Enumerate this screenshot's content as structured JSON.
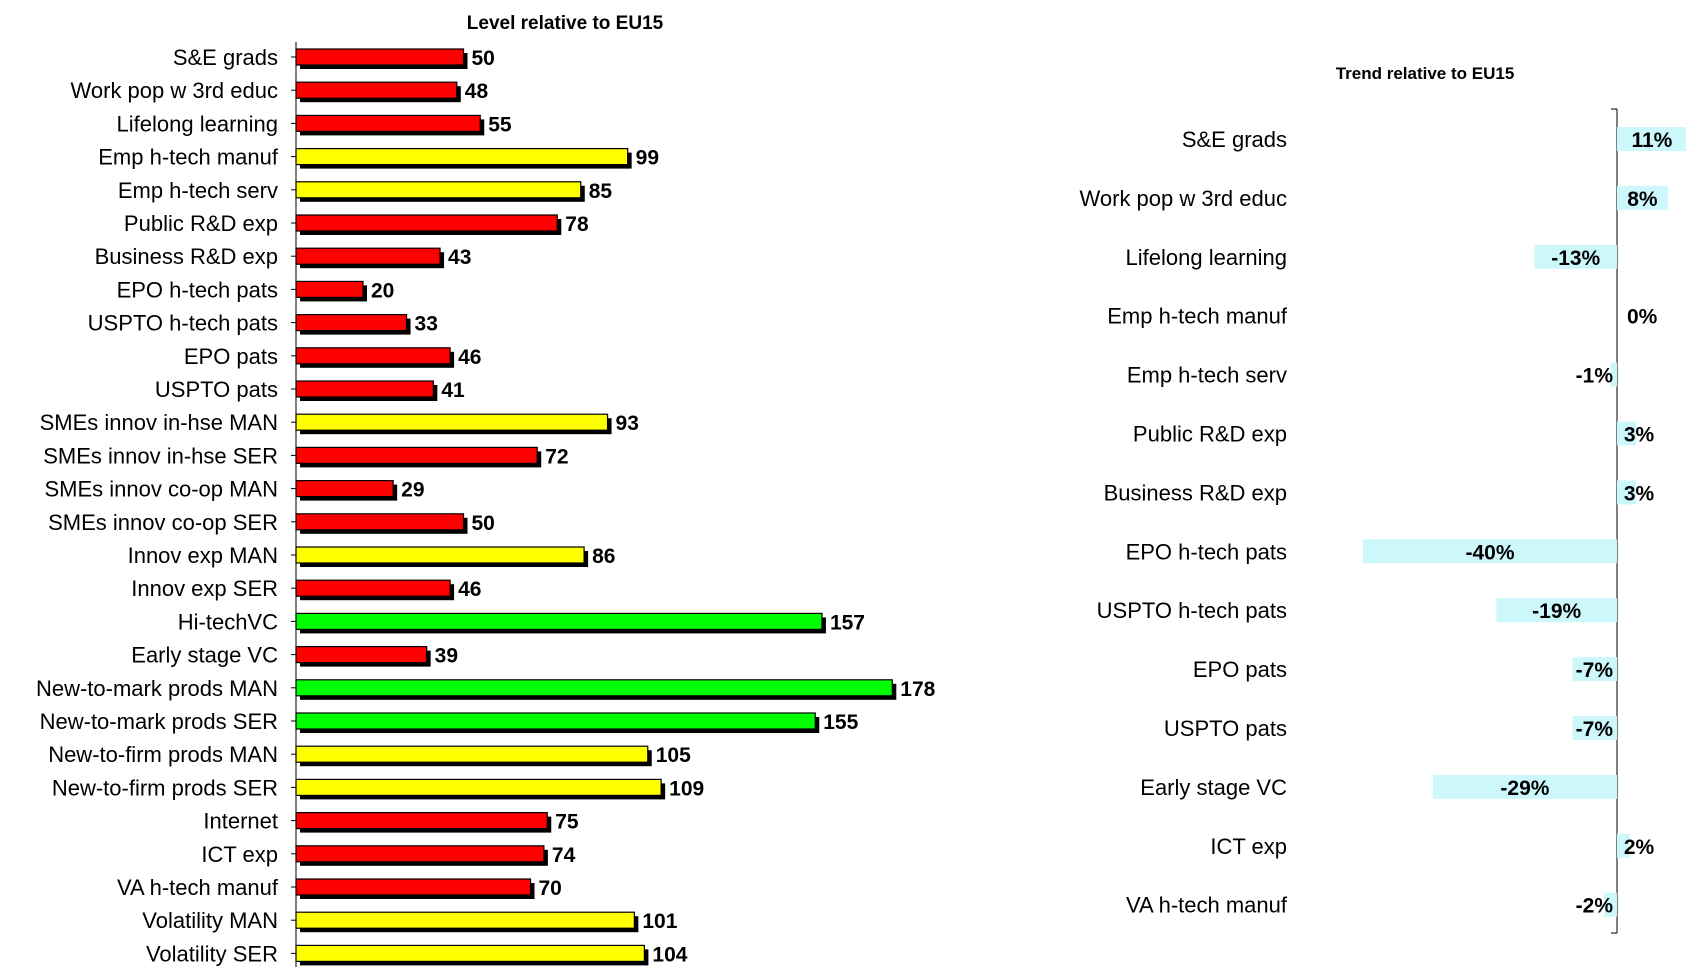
{
  "chart_data": [
    {
      "type": "bar",
      "orientation": "horizontal",
      "title": "Level relative to EU15",
      "categories": [
        "S&E grads",
        "Work pop w 3rd educ",
        "Lifelong learning",
        "Emp h-tech manuf",
        "Emp h-tech serv",
        "Public R&D exp",
        "Business R&D exp",
        "EPO h-tech pats",
        "USPTO h-tech pats",
        "EPO pats",
        "USPTO pats",
        "SMEs innov in-hse MAN",
        "SMEs innov in-hse SER",
        "SMEs innov co-op MAN",
        "SMEs innov co-op SER",
        "Innov exp MAN",
        "Innov exp SER",
        "Hi-techVC",
        "Early stage VC",
        "New-to-mark prods MAN",
        "New-to-mark prods SER",
        "New-to-firm  prods MAN",
        "New-to-firm  prods SER",
        "Internet",
        "ICT exp",
        "VA h-tech manuf",
        "Volatility MAN",
        "Volatility SER"
      ],
      "values": [
        50,
        48,
        55,
        99,
        85,
        78,
        43,
        20,
        33,
        46,
        41,
        93,
        72,
        29,
        50,
        86,
        46,
        157,
        39,
        178,
        155,
        105,
        109,
        75,
        74,
        70,
        101,
        104
      ],
      "value_labels": [
        "50",
        "48",
        "55",
        "99",
        "85",
        "78",
        "43",
        "20",
        "33",
        "46",
        "41",
        "93",
        "72",
        "29",
        "50",
        "86",
        "46",
        "157",
        "39",
        "178",
        "155",
        "105",
        "109",
        "75",
        "74",
        "70",
        "101",
        "104"
      ],
      "colors": [
        "#ff0000",
        "#ff0000",
        "#ff0000",
        "#ffff00",
        "#ffff00",
        "#ff0000",
        "#ff0000",
        "#ff0000",
        "#ff0000",
        "#ff0000",
        "#ff0000",
        "#ffff00",
        "#ff0000",
        "#ff0000",
        "#ff0000",
        "#ffff00",
        "#ff0000",
        "#00ff00",
        "#ff0000",
        "#00ff00",
        "#00ff00",
        "#ffff00",
        "#ffff00",
        "#ff0000",
        "#ff0000",
        "#ff0000",
        "#ffff00",
        "#ffff00"
      ],
      "xlim": [
        0,
        178
      ],
      "grid": false
    },
    {
      "type": "bar",
      "orientation": "horizontal",
      "title": "Trend relative to EU15",
      "categories": [
        "S&E grads",
        "Work pop w 3rd educ",
        "Lifelong learning",
        "Emp h-tech manuf",
        "Emp h-tech serv",
        "Public R&D exp",
        "Business R&D exp",
        "EPO h-tech pats",
        "USPTO h-tech pats",
        "EPO pats",
        "USPTO pats",
        "Early stage VC",
        "ICT exp",
        "VA h-tech manuf"
      ],
      "values": [
        11,
        8,
        -13,
        0,
        -1,
        3,
        3,
        -40,
        -19,
        -7,
        -7,
        -29,
        2,
        -2
      ],
      "value_labels": [
        "11%",
        "8%",
        "-13%",
        "0%",
        "-1%",
        "3%",
        "3%",
        "-40%",
        "-19%",
        "-7%",
        "-7%",
        "-29%",
        "2%",
        "-2%"
      ],
      "unit": "%",
      "bar_color": "#ccf8fc",
      "grid": false
    }
  ]
}
